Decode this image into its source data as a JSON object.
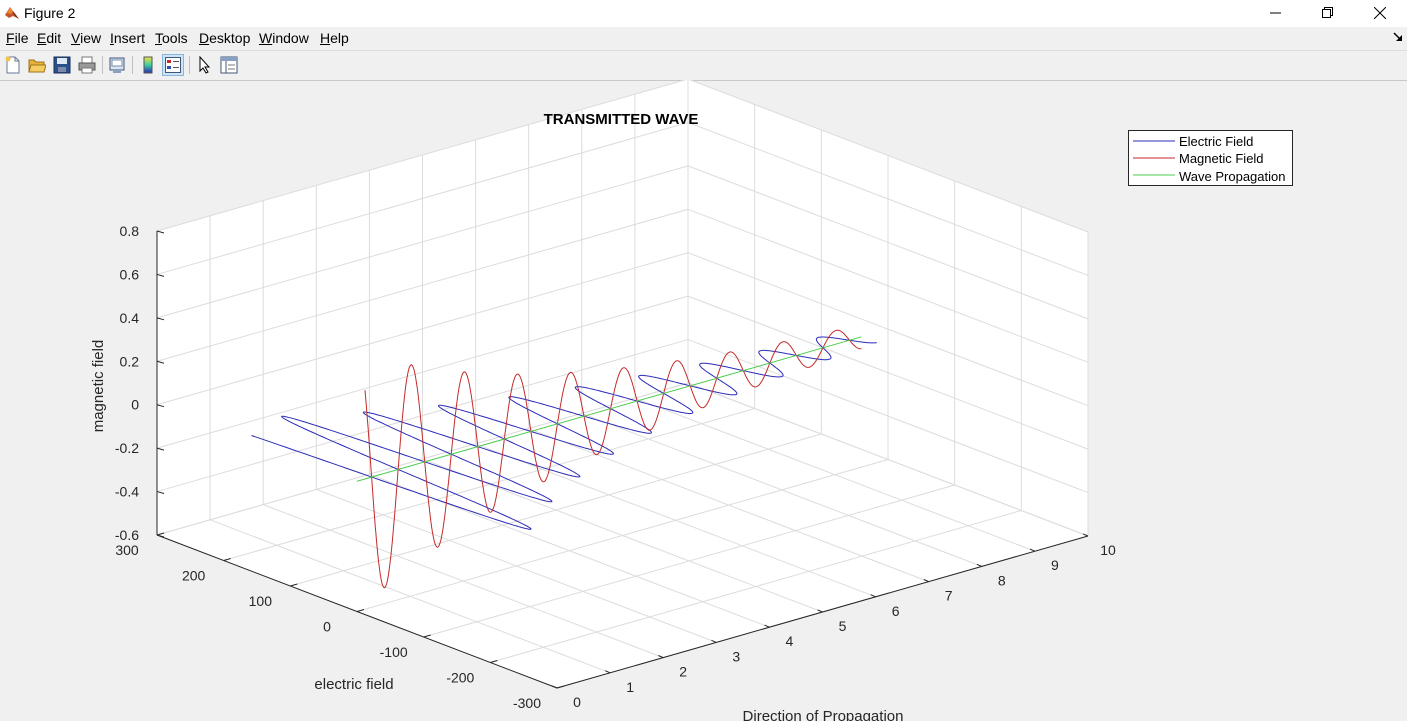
{
  "window": {
    "title": "Figure 2",
    "controls": [
      "minimize-icon",
      "restore-icon",
      "close-icon"
    ]
  },
  "menubar": {
    "items": [
      {
        "key": "F",
        "rest": "ile"
      },
      {
        "key": "E",
        "rest": "dit"
      },
      {
        "key": "V",
        "rest": "iew"
      },
      {
        "key": "I",
        "rest": "nsert"
      },
      {
        "key": "T",
        "rest": "ools"
      },
      {
        "key": "D",
        "rest": "esktop"
      },
      {
        "key": "W",
        "rest": "indow"
      },
      {
        "key": "H",
        "rest": "elp"
      }
    ]
  },
  "toolbar": {
    "buttons": [
      "new-figure-icon",
      "open-file-icon",
      "save-icon",
      "print-icon",
      "link-plot-icon",
      "colorbar-icon",
      "legend-icon",
      "edit-plot-icon",
      "property-inspector-icon"
    ]
  },
  "colors": {
    "electric": "#2b2bb8",
    "magnetic": "#c42a2a",
    "propagation": "#4ccc4c",
    "grid": "#dcdcdc"
  },
  "chart_data": {
    "type": "line",
    "title": "TRANSMITTED WAVE",
    "xlabel": "electric field",
    "ylabel": "Direction of Propagation",
    "zlabel": "magnetic field",
    "x_axis": {
      "range": [
        -300,
        300
      ],
      "ticks": [
        "300",
        "200",
        "100",
        "0",
        "-100",
        "-200",
        "-300"
      ]
    },
    "y_axis": {
      "range": [
        0,
        10
      ],
      "ticks": [
        "0",
        "1",
        "2",
        "3",
        "4",
        "5",
        "6",
        "7",
        "8",
        "9",
        "10"
      ]
    },
    "z_axis": {
      "range": [
        -0.6,
        0.8
      ],
      "ticks": [
        "0.8",
        "0.6",
        "0.4",
        "0.2",
        "0",
        "-0.2",
        "-0.4",
        "-0.6"
      ]
    },
    "grid": true,
    "legend_position": "top-right",
    "series": [
      {
        "name": "Electric Field",
        "color": "#2b2bb8",
        "plane": "electric-propagation",
        "amplitude_start": 250,
        "decay": 0.25,
        "cycles_per_unit": 1.0
      },
      {
        "name": "Magnetic Field",
        "color": "#c42a2a",
        "plane": "magnetic-propagation",
        "amplitude_start": 0.6,
        "decay": 0.25,
        "cycles_per_unit": 1.0
      },
      {
        "name": "Wave Propagation",
        "color": "#4ccc4c",
        "plane": "axis",
        "from": 0,
        "to": 10
      }
    ]
  }
}
